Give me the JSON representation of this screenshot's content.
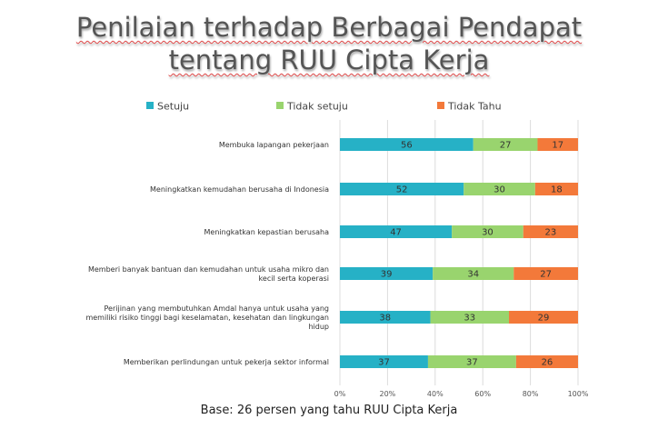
{
  "title_line1": "Penilaian terhadap Berbagai Pendapat",
  "title_line2": "tentang RUU Cipta Kerja",
  "footer": "Base: 26 persen yang tahu RUU Cipta Kerja",
  "colors": {
    "setuju": "#26b1c6",
    "tidak_setuju": "#99d46e",
    "tidak_tahu": "#f3793a"
  },
  "chart_data": {
    "type": "bar",
    "orientation": "horizontal",
    "stacked": "100%",
    "categories": [
      "Membuka lapangan pekerjaan",
      "Meningkatkan kemudahan berusaha di Indonesia",
      "Meningkatkan kepastian berusaha",
      "Memberi banyak bantuan dan kemudahan untuk usaha mikro dan kecil serta koperasi",
      "Perijinan yang membutuhkan Amdal hanya untuk usaha yang memiliki risiko tinggi bagi keselamatan, kesehatan dan lingkungan hidup",
      "Memberikan perlindungan untuk pekerja sektor informal"
    ],
    "category_lines": [
      [
        "Membuka lapangan pekerjaan"
      ],
      [
        "Meningkatkan kemudahan berusaha di Indonesia"
      ],
      [
        "Meningkatkan kepastian berusaha"
      ],
      [
        "Memberi banyak bantuan dan kemudahan untuk usaha mikro dan",
        "kecil serta koperasi"
      ],
      [
        "Perijinan yang membutuhkan Amdal hanya untuk usaha yang",
        "memiliki risiko tinggi bagi keselamatan, kesehatan dan lingkungan",
        "hidup"
      ],
      [
        "Memberikan perlindungan untuk pekerja sektor informal"
      ]
    ],
    "series": [
      {
        "name": "Setuju",
        "values": [
          56,
          52,
          47,
          39,
          38,
          37
        ]
      },
      {
        "name": "Tidak setuju",
        "values": [
          27,
          30,
          30,
          34,
          33,
          37
        ]
      },
      {
        "name": "Tidak Tahu",
        "values": [
          17,
          18,
          23,
          27,
          29,
          26
        ]
      }
    ],
    "x_ticks": [
      "0%",
      "20%",
      "40%",
      "60%",
      "80%",
      "100%"
    ],
    "xlim": [
      0,
      100
    ],
    "grid": true,
    "legend": "top"
  }
}
